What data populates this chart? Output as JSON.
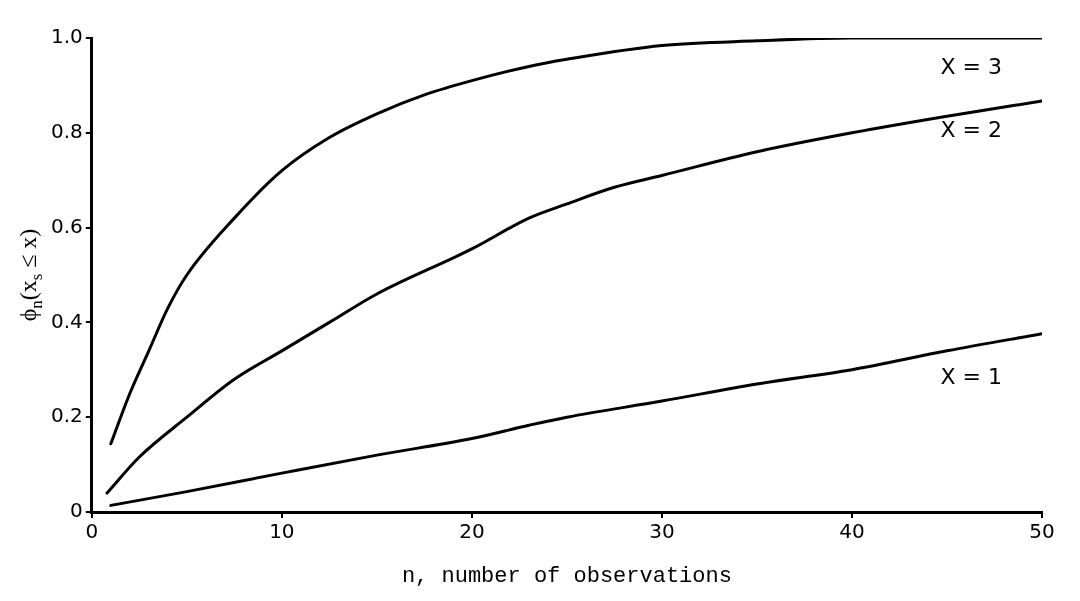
{
  "chart_data": {
    "type": "line",
    "xlabel": "n, number of observations",
    "ylabel": "ϕ$_{n}$(x$_{s}$ ≤ x)",
    "xlim": [
      0,
      50
    ],
    "xticks": [
      0,
      10,
      20,
      30,
      40,
      50
    ],
    "ylim": [
      0,
      1
    ],
    "yticks": [
      0,
      0.2,
      0.4,
      0.6,
      0.8,
      {
        "value": 1,
        "label": "1.0"
      }
    ],
    "grid": false,
    "legend": false,
    "marker": "none",
    "line_style": "solid",
    "series": [
      {
        "name": "X = 3",
        "color": "#000000",
        "x": [
          1,
          2,
          3,
          4,
          5,
          7.5,
          10,
          12.5,
          15,
          17.5,
          20,
          23,
          25,
          30,
          35,
          40,
          50
        ],
        "values": [
          0.144,
          0.25,
          0.34,
          0.43,
          0.5,
          0.62,
          0.72,
          0.79,
          0.84,
          0.88,
          0.91,
          0.94,
          0.955,
          0.984,
          0.994,
          1.0,
          1.0
        ]
      },
      {
        "name": "X = 2",
        "color": "#000000",
        "x": [
          0.8,
          2.5,
          5,
          7.5,
          10,
          12.5,
          15,
          20,
          23,
          25,
          27.5,
          30,
          35,
          40,
          45,
          50
        ],
        "values": [
          0.04,
          0.116,
          0.2,
          0.28,
          0.34,
          0.4,
          0.46,
          0.555,
          0.62,
          0.65,
          0.685,
          0.71,
          0.76,
          0.8,
          0.835,
          0.867
        ]
      },
      {
        "name": "X = 1",
        "color": "#000000",
        "x": [
          1,
          5,
          10,
          15,
          20,
          23,
          25,
          30,
          35,
          40,
          45,
          50
        ],
        "values": [
          0.014,
          0.043,
          0.082,
          0.12,
          0.155,
          0.183,
          0.2,
          0.234,
          0.27,
          0.3,
          0.34,
          0.376
        ]
      }
    ]
  }
}
